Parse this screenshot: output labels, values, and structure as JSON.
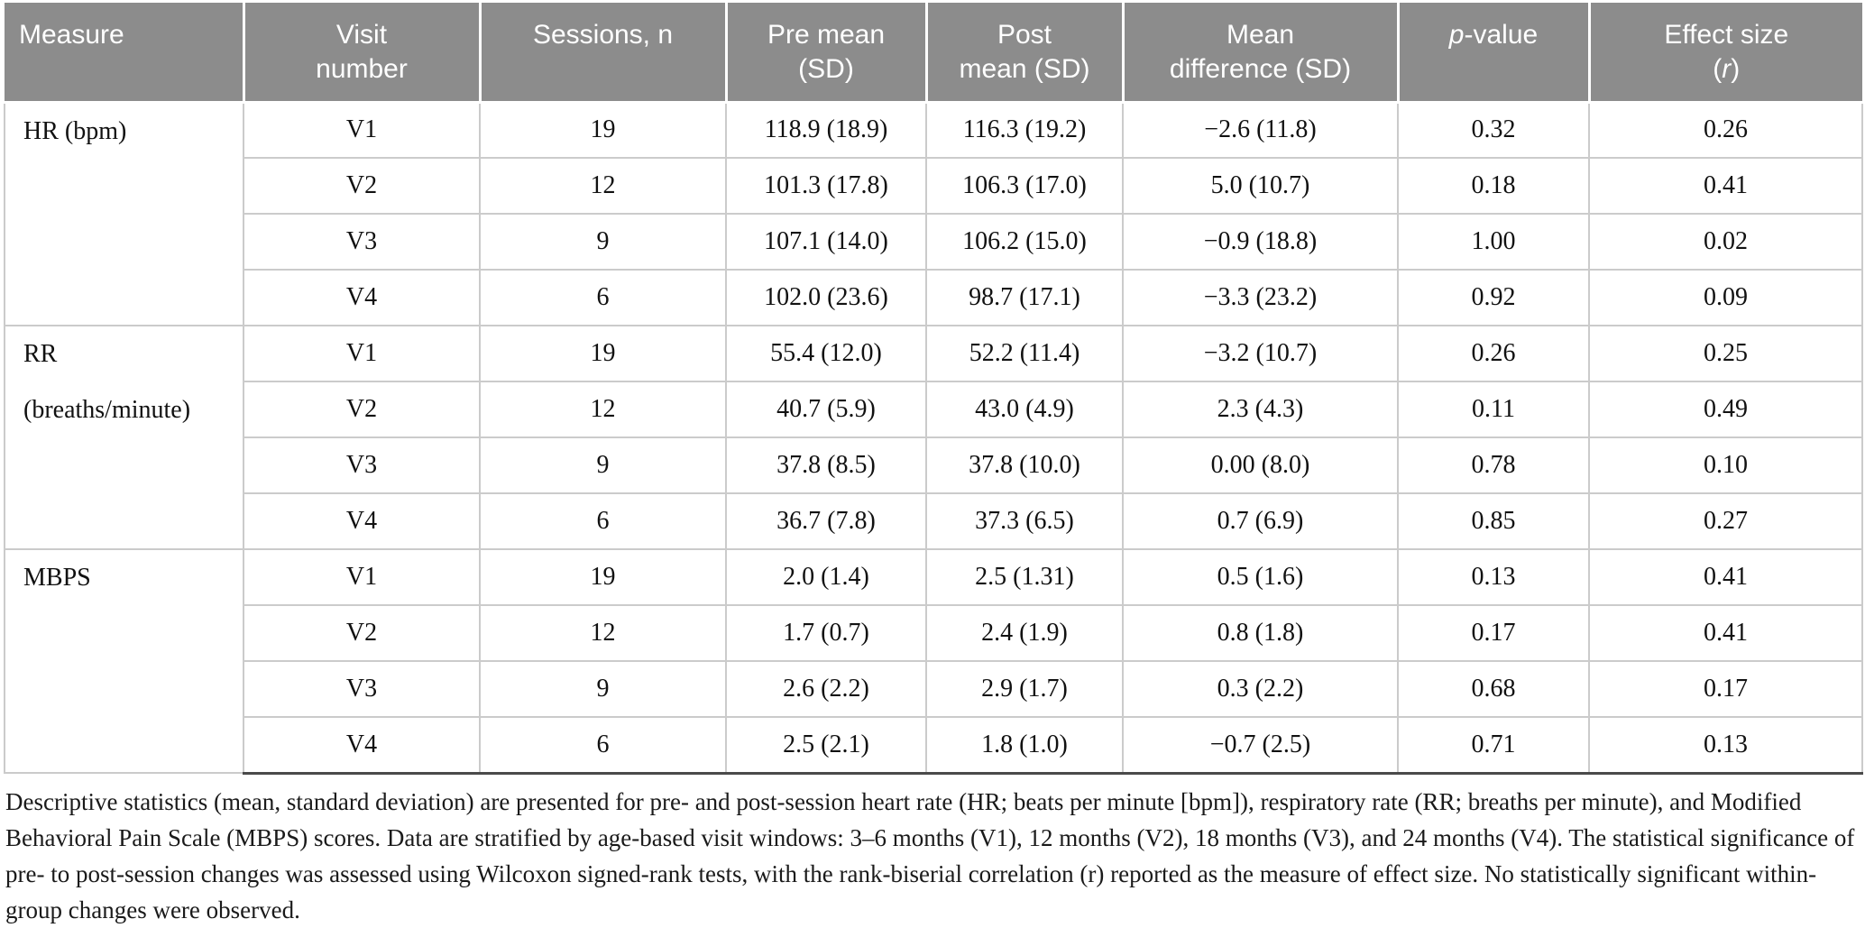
{
  "table": {
    "columns": [
      {
        "id": "measure",
        "lines": [
          [
            {
              "t": "Measure"
            }
          ]
        ]
      },
      {
        "id": "visit",
        "lines": [
          [
            {
              "t": "Visit"
            }
          ],
          [
            {
              "t": "number"
            }
          ]
        ]
      },
      {
        "id": "sessions",
        "lines": [
          [
            {
              "t": "Sessions, n"
            }
          ]
        ]
      },
      {
        "id": "pre",
        "lines": [
          [
            {
              "t": "Pre mean"
            }
          ],
          [
            {
              "t": "(SD)"
            }
          ]
        ]
      },
      {
        "id": "post",
        "lines": [
          [
            {
              "t": "Post"
            }
          ],
          [
            {
              "t": "mean (SD)"
            }
          ]
        ]
      },
      {
        "id": "meandiff",
        "lines": [
          [
            {
              "t": "Mean"
            }
          ],
          [
            {
              "t": "difference (SD)"
            }
          ]
        ]
      },
      {
        "id": "pvalue",
        "lines": [
          [
            {
              "t": "p",
              "i": true
            },
            {
              "t": "-value"
            }
          ]
        ]
      },
      {
        "id": "effect",
        "lines": [
          [
            {
              "t": "Effect size"
            }
          ],
          [
            {
              "t": "("
            },
            {
              "t": "r",
              "i": true
            },
            {
              "t": ")"
            }
          ]
        ]
      }
    ],
    "sections": [
      {
        "measure_lines": [
          "HR (bpm)"
        ],
        "rows": [
          {
            "visit": "V1",
            "sessions": "19",
            "pre": "118.9 (18.9)",
            "post": "116.3 (19.2)",
            "diff": "−2.6 (11.8)",
            "p": "0.32",
            "effect": "0.26"
          },
          {
            "visit": "V2",
            "sessions": "12",
            "pre": "101.3 (17.8)",
            "post": "106.3 (17.0)",
            "diff": "5.0 (10.7)",
            "p": "0.18",
            "effect": "0.41"
          },
          {
            "visit": "V3",
            "sessions": "9",
            "pre": "107.1 (14.0)",
            "post": "106.2 (15.0)",
            "diff": "−0.9 (18.8)",
            "p": "1.00",
            "effect": "0.02"
          },
          {
            "visit": "V4",
            "sessions": "6",
            "pre": "102.0 (23.6)",
            "post": "98.7 (17.1)",
            "diff": "−3.3 (23.2)",
            "p": "0.92",
            "effect": "0.09"
          }
        ]
      },
      {
        "measure_lines": [
          "RR",
          "(breaths/minute)"
        ],
        "rows": [
          {
            "visit": "V1",
            "sessions": "19",
            "pre": "55.4 (12.0)",
            "post": "52.2 (11.4)",
            "diff": "−3.2 (10.7)",
            "p": "0.26",
            "effect": "0.25"
          },
          {
            "visit": "V2",
            "sessions": "12",
            "pre": "40.7 (5.9)",
            "post": "43.0 (4.9)",
            "diff": "2.3 (4.3)",
            "p": "0.11",
            "effect": "0.49"
          },
          {
            "visit": "V3",
            "sessions": "9",
            "pre": "37.8 (8.5)",
            "post": "37.8 (10.0)",
            "diff": "0.00 (8.0)",
            "p": "0.78",
            "effect": "0.10"
          },
          {
            "visit": "V4",
            "sessions": "6",
            "pre": "36.7 (7.8)",
            "post": "37.3 (6.5)",
            "diff": "0.7 (6.9)",
            "p": "0.85",
            "effect": "0.27"
          }
        ]
      },
      {
        "measure_lines": [
          "MBPS"
        ],
        "rows": [
          {
            "visit": "V1",
            "sessions": "19",
            "pre": "2.0 (1.4)",
            "post": "2.5 (1.31)",
            "diff": "0.5 (1.6)",
            "p": "0.13",
            "effect": "0.41"
          },
          {
            "visit": "V2",
            "sessions": "12",
            "pre": "1.7 (0.7)",
            "post": "2.4 (1.9)",
            "diff": "0.8 (1.8)",
            "p": "0.17",
            "effect": "0.41"
          },
          {
            "visit": "V3",
            "sessions": "9",
            "pre": "2.6 (2.2)",
            "post": "2.9 (1.7)",
            "diff": "0.3 (2.2)",
            "p": "0.68",
            "effect": "0.17"
          },
          {
            "visit": "V4",
            "sessions": "6",
            "pre": "2.5 (2.1)",
            "post": "1.8 (1.0)",
            "diff": "−0.7 (2.5)",
            "p": "0.71",
            "effect": "0.13"
          }
        ]
      }
    ]
  },
  "caption": "Descriptive statistics (mean, standard deviation) are presented for pre- and post-session heart rate (HR; beats per minute [bpm]), respiratory rate (RR; breaths per minute), and Modified Behavioral Pain Scale (MBPS) scores. Data are stratified by age-based visit windows: 3–6 months (V1), 12 months (V2), 18 months (V3), and 24 months (V4). The statistical significance of pre- to post-session changes was assessed using Wilcoxon signed-rank tests, with the rank-biserial correlation (r) reported as the measure of effect size. No statistically significant within-group changes were observed.",
  "colors": {
    "header_bg": "#8c8c8c",
    "header_text": "#ffffff",
    "body_border": "#cbcbcb",
    "bottom_rule": "#4a4a4a"
  }
}
